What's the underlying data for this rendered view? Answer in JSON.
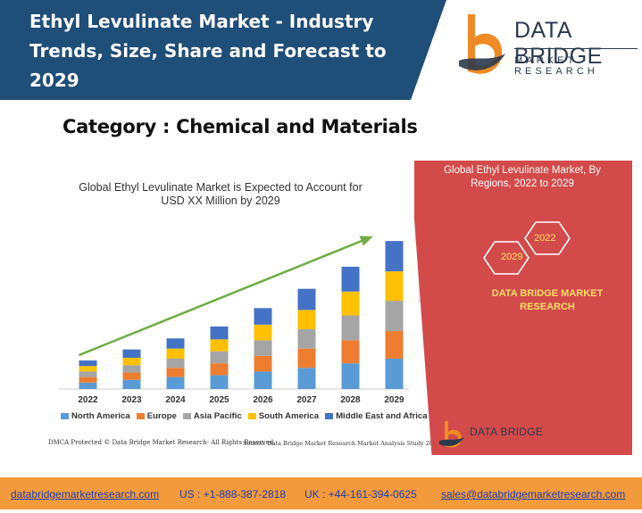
{
  "header": {
    "title": "Ethyl Levulinate Market - Industry Trends, Size, Share and Forecast to 2029",
    "logo_line1": "DATA BRIDGE",
    "logo_line2": "MARKET RESEARCH"
  },
  "category": "Category : Chemical and Materials",
  "chart_data": {
    "type": "bar",
    "title": "Global Ethyl Levulinate Market is Expected to Account for USD XX Million by 2029",
    "categories": [
      "2022",
      "2023",
      "2024",
      "2025",
      "2026",
      "2027",
      "2028",
      "2029"
    ],
    "series": [
      {
        "name": "North America",
        "color": "#5b9bd5",
        "values": [
          7,
          10,
          13,
          15,
          19,
          23,
          28,
          33
        ]
      },
      {
        "name": "Europe",
        "color": "#ed7d31",
        "values": [
          6,
          8,
          10,
          13,
          17,
          21,
          25,
          30
        ]
      },
      {
        "name": "Asia Pacific",
        "color": "#a5a5a5",
        "values": [
          6,
          8,
          10,
          13,
          17,
          21,
          27,
          33
        ]
      },
      {
        "name": "South America",
        "color": "#ffc000",
        "values": [
          6,
          8,
          11,
          13,
          17,
          21,
          26,
          32
        ]
      },
      {
        "name": "Middle East and Africa",
        "color": "#4472c4",
        "values": [
          6,
          9,
          11,
          14,
          18,
          23,
          27,
          33
        ]
      }
    ],
    "stacked": true,
    "trend_arrow_color": "#70ad47",
    "legend_position": "bottom",
    "grid": false
  },
  "footnotes": {
    "left": "DMCA Protected © Data Bridge Market Research- All Rights Reserved.",
    "right": "Source: Data Bridge Market Research Market Analysis Study 2022"
  },
  "side_panel": {
    "title": "Global Ethyl Levulinate Market, By Regions, 2022 to 2029",
    "hex_2022": "2022",
    "hex_2029": "2029",
    "brand": "DATA BRIDGE MARKET RESEARCH",
    "panel_color": "#d34a4a",
    "small_logo_text": "DATA BRIDGE"
  },
  "footer": {
    "website": "databridgemarketresearch.com",
    "us_phone": "US : +1-888-387-2818",
    "uk_phone": "UK : +44-161-394-0625",
    "email": "sales@databridgemarketresearch.com",
    "bar_color": "#f39a3c"
  }
}
